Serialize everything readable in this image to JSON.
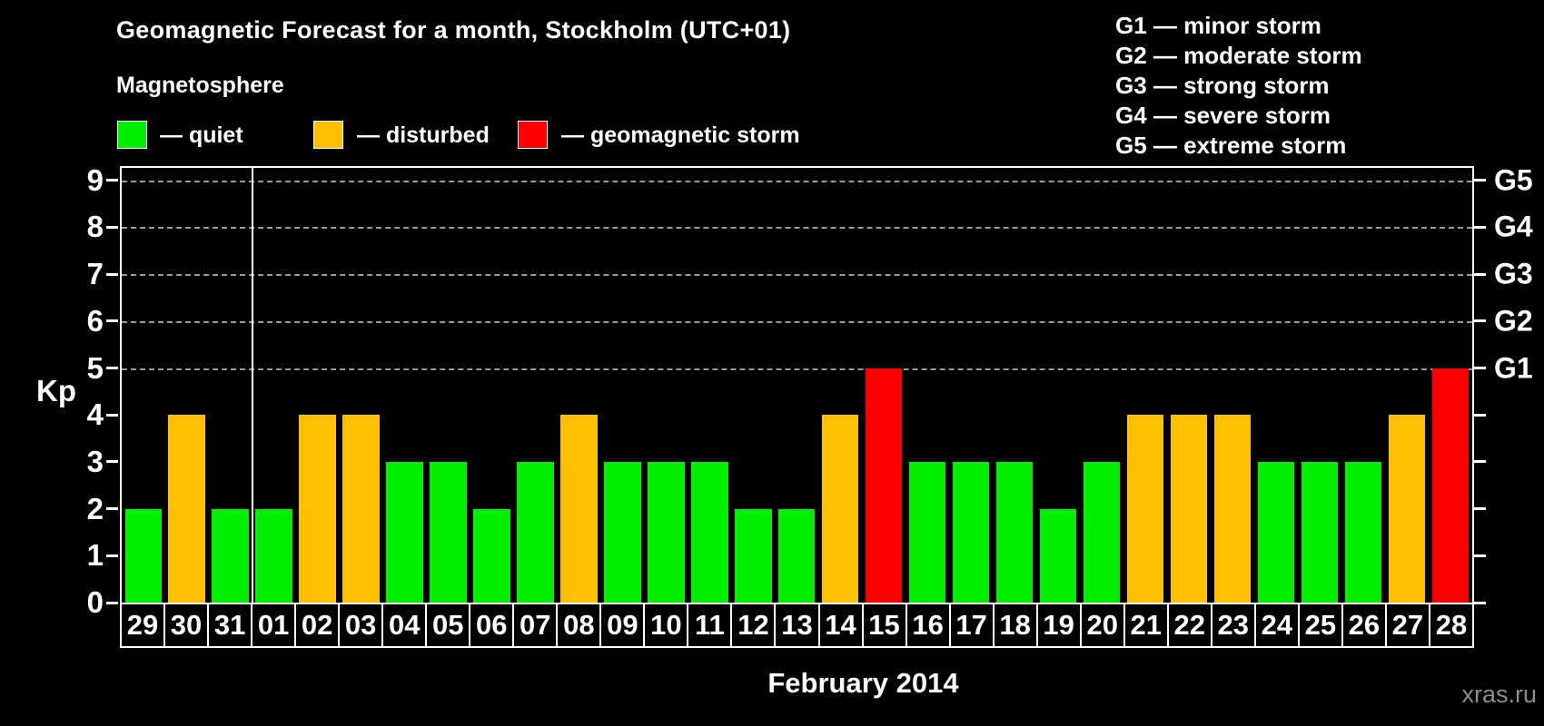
{
  "title": "Geomagnetic Forecast for a month, Stockholm (UTC+01)",
  "subtitle": "Magnetosphere",
  "legend": {
    "items": [
      {
        "key": "quiet",
        "label": "— quiet",
        "color": "#00ee00"
      },
      {
        "key": "disturbed",
        "label": "— disturbed",
        "color": "#ffc000"
      },
      {
        "key": "storm",
        "label": "— geomagnetic storm",
        "color": "#ff0000"
      }
    ]
  },
  "storm_scale_legend": [
    "G1 — minor storm",
    "G2 — moderate storm",
    "G3 — strong storm",
    "G4 — severe storm",
    "G5 — extreme storm"
  ],
  "watermark": "xras.ru",
  "chart_data": {
    "type": "bar",
    "title": "Geomagnetic Forecast for a month, Stockholm (UTC+01)",
    "xlabel": "February 2014",
    "ylabel": "Kp",
    "ylim": [
      0,
      9.3
    ],
    "yticks": [
      0,
      1,
      2,
      3,
      4,
      5,
      6,
      7,
      8,
      9
    ],
    "gridlines_at": [
      5,
      6,
      7,
      8,
      9
    ],
    "grid": "dashed-horizontal-top-half-only",
    "legend_position": "top-left",
    "right_axis": [
      {
        "kp": 5,
        "label": "G1"
      },
      {
        "kp": 6,
        "label": "G2"
      },
      {
        "kp": 7,
        "label": "G3"
      },
      {
        "kp": 8,
        "label": "G4"
      },
      {
        "kp": 9,
        "label": "G5"
      }
    ],
    "status_colors": {
      "quiet": "#00ee00",
      "disturbed": "#ffc000",
      "storm": "#ff0000"
    },
    "month_separator_after_index": 2,
    "series": [
      {
        "day": "29",
        "kp": 2,
        "status": "quiet"
      },
      {
        "day": "30",
        "kp": 4,
        "status": "disturbed"
      },
      {
        "day": "31",
        "kp": 2,
        "status": "quiet"
      },
      {
        "day": "01",
        "kp": 2,
        "status": "quiet"
      },
      {
        "day": "02",
        "kp": 4,
        "status": "disturbed"
      },
      {
        "day": "03",
        "kp": 4,
        "status": "disturbed"
      },
      {
        "day": "04",
        "kp": 3,
        "status": "quiet"
      },
      {
        "day": "05",
        "kp": 3,
        "status": "quiet"
      },
      {
        "day": "06",
        "kp": 2,
        "status": "quiet"
      },
      {
        "day": "07",
        "kp": 3,
        "status": "quiet"
      },
      {
        "day": "08",
        "kp": 4,
        "status": "disturbed"
      },
      {
        "day": "09",
        "kp": 3,
        "status": "quiet"
      },
      {
        "day": "10",
        "kp": 3,
        "status": "quiet"
      },
      {
        "day": "11",
        "kp": 3,
        "status": "quiet"
      },
      {
        "day": "12",
        "kp": 2,
        "status": "quiet"
      },
      {
        "day": "13",
        "kp": 2,
        "status": "quiet"
      },
      {
        "day": "14",
        "kp": 4,
        "status": "disturbed"
      },
      {
        "day": "15",
        "kp": 5,
        "status": "storm"
      },
      {
        "day": "16",
        "kp": 3,
        "status": "quiet"
      },
      {
        "day": "17",
        "kp": 3,
        "status": "quiet"
      },
      {
        "day": "18",
        "kp": 3,
        "status": "quiet"
      },
      {
        "day": "19",
        "kp": 2,
        "status": "quiet"
      },
      {
        "day": "20",
        "kp": 3,
        "status": "quiet"
      },
      {
        "day": "21",
        "kp": 4,
        "status": "disturbed"
      },
      {
        "day": "22",
        "kp": 4,
        "status": "disturbed"
      },
      {
        "day": "23",
        "kp": 4,
        "status": "disturbed"
      },
      {
        "day": "24",
        "kp": 3,
        "status": "quiet"
      },
      {
        "day": "25",
        "kp": 3,
        "status": "quiet"
      },
      {
        "day": "26",
        "kp": 3,
        "status": "quiet"
      },
      {
        "day": "27",
        "kp": 4,
        "status": "disturbed"
      },
      {
        "day": "28",
        "kp": 5,
        "status": "storm"
      }
    ]
  }
}
